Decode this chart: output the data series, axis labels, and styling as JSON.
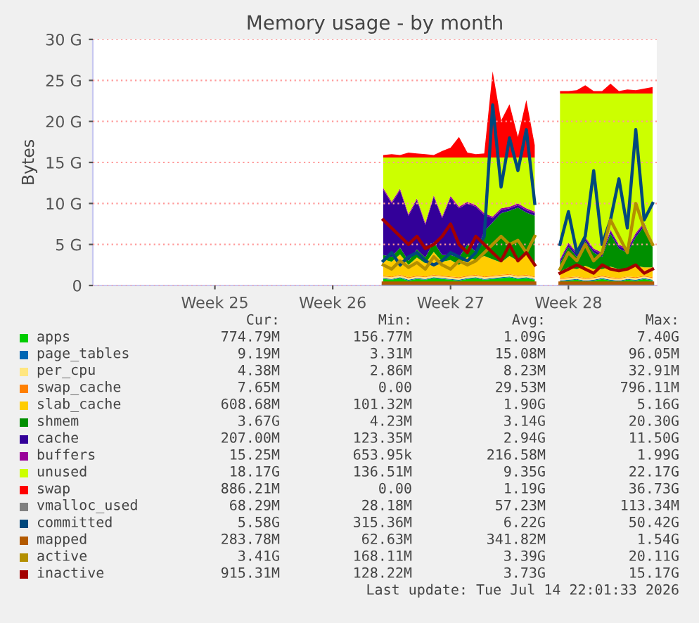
{
  "chart_data": {
    "type": "area",
    "title": "Memory usage - by month",
    "ylabel": "Bytes",
    "stacked": true,
    "legend": "bottom",
    "grid": "y",
    "categories": [
      null,
      null,
      null,
      null,
      null,
      null,
      null,
      null,
      null,
      null,
      null,
      null,
      null,
      null,
      "Week 25",
      null,
      null,
      null,
      null,
      null,
      null,
      null,
      null,
      null,
      null,
      null,
      null,
      null,
      "Week 26",
      null,
      null,
      null,
      null,
      null,
      null,
      null,
      null,
      null,
      null,
      null,
      null,
      null,
      "Week 27",
      null,
      null,
      null,
      null,
      null,
      null,
      null,
      null,
      null,
      null,
      null,
      null,
      null,
      "Week 28",
      null,
      null,
      null,
      null,
      null,
      null,
      null,
      null,
      null,
      null
    ],
    "ylim": [
      0,
      30
    ],
    "yticks": [
      0,
      {
        "value": 5,
        "label": "5 G"
      },
      {
        "value": 10,
        "label": "10 G"
      },
      {
        "value": 15,
        "label": "15 G"
      },
      {
        "value": 20,
        "label": "20 G"
      },
      {
        "value": 25,
        "label": "25 G"
      },
      {
        "value": 30,
        "label": "30 G"
      }
    ],
    "series": [
      {
        "name": "apps",
        "color": "#00cc00",
        "values": [
          null,
          null,
          null,
          null,
          null,
          null,
          null,
          null,
          null,
          null,
          null,
          null,
          null,
          null,
          null,
          null,
          null,
          null,
          null,
          null,
          null,
          null,
          null,
          null,
          null,
          null,
          null,
          null,
          null,
          null,
          null,
          null,
          null,
          null,
          0.8,
          0.7,
          0.9,
          0.6,
          0.8,
          0.7,
          0.9,
          0.8,
          0.7,
          0.6,
          0.8,
          0.9,
          0.7,
          0.8,
          0.9,
          1.0,
          0.8,
          0.9,
          0.7,
          null,
          null,
          0.5,
          0.6,
          0.7,
          0.5,
          0.6,
          0.8,
          0.6,
          0.5,
          0.7,
          0.6,
          0.8,
          0.6
        ]
      },
      {
        "name": "page_tables",
        "color": "#0066b3",
        "values": [
          null,
          null,
          null,
          null,
          null,
          null,
          null,
          null,
          null,
          null,
          null,
          null,
          null,
          null,
          null,
          null,
          null,
          null,
          null,
          null,
          null,
          null,
          null,
          null,
          null,
          null,
          null,
          null,
          null,
          null,
          null,
          null,
          null,
          null,
          0.1,
          0.1,
          0.1,
          0.1,
          0.1,
          0.1,
          0.1,
          0.1,
          0.1,
          0.1,
          0.1,
          0.1,
          0.1,
          0.1,
          0.1,
          0.1,
          0.1,
          0.1,
          0.1,
          null,
          null,
          0.1,
          0.1,
          0.1,
          0.1,
          0.1,
          0.1,
          0.1,
          0.1,
          0.1,
          0.1,
          0.1,
          0.1
        ]
      },
      {
        "name": "per_cpu",
        "color": "#ffe680",
        "values": [
          null,
          null,
          null,
          null,
          null,
          null,
          null,
          null,
          null,
          null,
          null,
          null,
          null,
          null,
          null,
          null,
          null,
          null,
          null,
          null,
          null,
          null,
          null,
          null,
          null,
          null,
          null,
          null,
          null,
          null,
          null,
          null,
          null,
          null,
          0.2,
          0.2,
          0.2,
          0.2,
          0.2,
          0.2,
          0.2,
          0.2,
          0.2,
          0.2,
          0.2,
          0.2,
          0.2,
          0.2,
          0.2,
          0.2,
          0.2,
          0.2,
          0.2,
          null,
          null,
          0.2,
          0.2,
          0.2,
          0.2,
          0.2,
          0.2,
          0.2,
          0.2,
          0.2,
          0.2,
          0.2,
          0.2
        ]
      },
      {
        "name": "swap_cache",
        "color": "#ff8000",
        "values": [
          null,
          null,
          null,
          null,
          null,
          null,
          null,
          null,
          null,
          null,
          null,
          null,
          null,
          null,
          null,
          null,
          null,
          null,
          null,
          null,
          null,
          null,
          null,
          null,
          null,
          null,
          null,
          null,
          null,
          null,
          null,
          null,
          null,
          null,
          0.1,
          0.1,
          0.1,
          0.1,
          0.1,
          0.1,
          0.1,
          0.1,
          0.1,
          0.1,
          0.1,
          0.1,
          0.1,
          0.1,
          0.1,
          0.1,
          0.1,
          0.1,
          0.1,
          null,
          null,
          0.1,
          0.1,
          0.1,
          0.1,
          0.1,
          0.1,
          0.1,
          0.1,
          0.1,
          0.1,
          0.1,
          0.1
        ]
      },
      {
        "name": "slab_cache",
        "color": "#ffcc00",
        "values": [
          null,
          null,
          null,
          null,
          null,
          null,
          null,
          null,
          null,
          null,
          null,
          null,
          null,
          null,
          null,
          null,
          null,
          null,
          null,
          null,
          null,
          null,
          null,
          null,
          null,
          null,
          null,
          null,
          null,
          null,
          null,
          null,
          null,
          null,
          2.0,
          1.8,
          2.5,
          1.5,
          2.2,
          1.6,
          2.8,
          1.7,
          2.0,
          1.5,
          2.3,
          1.8,
          2.5,
          2.0,
          1.5,
          2.2,
          1.8,
          2.6,
          1.4,
          null,
          null,
          0.8,
          1.2,
          0.9,
          1.5,
          1.0,
          0.8,
          1.3,
          1.1,
          0.9,
          1.4,
          1.0,
          1.2
        ]
      },
      {
        "name": "shmem",
        "color": "#008f00",
        "values": [
          null,
          null,
          null,
          null,
          null,
          null,
          null,
          null,
          null,
          null,
          null,
          null,
          null,
          null,
          null,
          null,
          null,
          null,
          null,
          null,
          null,
          null,
          null,
          null,
          null,
          null,
          null,
          null,
          null,
          null,
          null,
          null,
          null,
          null,
          0.5,
          0.6,
          0.8,
          0.5,
          1.0,
          0.7,
          1.2,
          0.8,
          0.6,
          0.9,
          1.5,
          1.0,
          3.0,
          4.5,
          6.0,
          5.5,
          6.5,
          5.0,
          6.0,
          null,
          null,
          1.0,
          2.5,
          1.5,
          3.0,
          2.0,
          1.5,
          4.0,
          2.5,
          2.0,
          3.5,
          5.0,
          2.5
        ]
      },
      {
        "name": "cache",
        "color": "#330099",
        "values": [
          null,
          null,
          null,
          null,
          null,
          null,
          null,
          null,
          null,
          null,
          null,
          null,
          null,
          null,
          null,
          null,
          null,
          null,
          null,
          null,
          null,
          null,
          null,
          null,
          null,
          null,
          null,
          null,
          null,
          null,
          null,
          null,
          null,
          null,
          8.0,
          6.5,
          7.0,
          5.5,
          6.0,
          4.0,
          5.5,
          4.5,
          7.0,
          6.0,
          5.0,
          5.5,
          2.0,
          0.5,
          0.4,
          0.3,
          0.3,
          0.3,
          0.3,
          null,
          null,
          0.3,
          0.3,
          0.3,
          0.3,
          0.3,
          0.3,
          0.3,
          0.3,
          0.3,
          0.3,
          0.3,
          0.3
        ]
      },
      {
        "name": "buffers",
        "color": "#990099",
        "values": [
          null,
          null,
          null,
          null,
          null,
          null,
          null,
          null,
          null,
          null,
          null,
          null,
          null,
          null,
          null,
          null,
          null,
          null,
          null,
          null,
          null,
          null,
          null,
          null,
          null,
          null,
          null,
          null,
          null,
          null,
          null,
          null,
          null,
          null,
          0.2,
          0.2,
          0.2,
          0.2,
          0.2,
          0.2,
          0.2,
          0.2,
          0.2,
          0.2,
          0.2,
          0.2,
          0.2,
          0.2,
          0.2,
          0.2,
          0.2,
          0.2,
          0.2,
          null,
          null,
          0.2,
          0.2,
          0.2,
          0.2,
          0.2,
          0.2,
          0.2,
          0.2,
          0.2,
          0.2,
          0.2,
          0.2
        ]
      },
      {
        "name": "unused",
        "color": "#ccff00",
        "values": [
          null,
          null,
          null,
          null,
          null,
          null,
          null,
          null,
          null,
          null,
          null,
          null,
          null,
          null,
          null,
          null,
          null,
          null,
          null,
          null,
          null,
          null,
          null,
          null,
          null,
          null,
          null,
          null,
          null,
          null,
          null,
          null,
          null,
          null,
          3.7,
          5.4,
          3.8,
          6.9,
          5.0,
          8.0,
          4.6,
          7.2,
          4.7,
          6.0,
          5.4,
          5.8,
          6.8,
          7.2,
          6.2,
          6.0,
          5.6,
          6.2,
          6.6,
          null,
          null,
          20.2,
          18.2,
          19.4,
          17.5,
          18.9,
          19.4,
          16.6,
          18.4,
          18.9,
          17.0,
          15.7,
          18.2
        ]
      },
      {
        "name": "swap",
        "color": "#ff0000",
        "values": [
          null,
          null,
          null,
          null,
          null,
          null,
          null,
          null,
          null,
          null,
          null,
          null,
          null,
          null,
          null,
          null,
          null,
          null,
          null,
          null,
          null,
          null,
          null,
          null,
          null,
          null,
          null,
          null,
          null,
          null,
          null,
          null,
          null,
          null,
          0.3,
          0.4,
          0.3,
          0.6,
          0.5,
          0.4,
          0.3,
          0.8,
          1.2,
          2.5,
          0.6,
          0.4,
          0.5,
          10.5,
          4.5,
          6.5,
          2.5,
          7.0,
          1.5,
          null,
          null,
          0.3,
          0.3,
          0.4,
          1.0,
          0.3,
          0.3,
          1.2,
          0.3,
          0.5,
          0.4,
          0.6,
          0.8
        ]
      },
      {
        "name": "vmalloc_used",
        "type": "line",
        "color": "#808080",
        "values": [
          null,
          null,
          null,
          null,
          null,
          null,
          null,
          null,
          null,
          null,
          null,
          null,
          null,
          null,
          null,
          null,
          null,
          null,
          null,
          null,
          null,
          null,
          null,
          null,
          null,
          null,
          null,
          null,
          null,
          null,
          null,
          null,
          null,
          null,
          0,
          0,
          0,
          0,
          0,
          0,
          0,
          0,
          0,
          0,
          0,
          0,
          0,
          0,
          0,
          0,
          0,
          0,
          0,
          null,
          null,
          0,
          0,
          0,
          0,
          0,
          0,
          0,
          0,
          0,
          0,
          0,
          0
        ]
      },
      {
        "name": "committed",
        "type": "line",
        "color": "#00487d",
        "values": [
          null,
          null,
          null,
          null,
          null,
          null,
          null,
          null,
          null,
          null,
          null,
          null,
          null,
          null,
          null,
          null,
          null,
          null,
          null,
          null,
          null,
          null,
          null,
          null,
          null,
          null,
          null,
          null,
          null,
          null,
          null,
          null,
          null,
          null,
          3,
          4,
          2.5,
          3.5,
          4,
          3,
          2.5,
          3,
          4,
          3.5,
          3,
          4,
          6,
          22,
          12,
          18,
          14,
          19,
          10,
          null,
          null,
          5,
          9,
          4,
          6,
          14,
          5,
          8,
          13,
          7,
          19,
          8,
          10
        ]
      },
      {
        "name": "mapped",
        "type": "line",
        "color": "#b35a00",
        "values": [
          null,
          null,
          null,
          null,
          null,
          null,
          null,
          null,
          null,
          null,
          null,
          null,
          null,
          null,
          null,
          null,
          null,
          null,
          null,
          null,
          null,
          null,
          null,
          null,
          null,
          null,
          null,
          null,
          null,
          null,
          null,
          null,
          null,
          null,
          0.3,
          0.3,
          0.3,
          0.3,
          0.3,
          0.3,
          0.3,
          0.3,
          0.3,
          0.3,
          0.3,
          0.3,
          0.3,
          0.3,
          0.3,
          0.3,
          0.3,
          0.3,
          0.3,
          null,
          null,
          0.3,
          0.3,
          0.3,
          0.3,
          0.3,
          0.3,
          0.3,
          0.3,
          0.3,
          0.3,
          0.3,
          0.3
        ]
      },
      {
        "name": "active",
        "type": "line",
        "color": "#b38f00",
        "values": [
          null,
          null,
          null,
          null,
          null,
          null,
          null,
          null,
          null,
          null,
          null,
          null,
          null,
          null,
          null,
          null,
          null,
          null,
          null,
          null,
          null,
          null,
          null,
          null,
          null,
          null,
          null,
          null,
          null,
          null,
          null,
          null,
          null,
          null,
          2.5,
          2,
          3,
          2.2,
          2.8,
          2,
          3.5,
          2.5,
          2,
          3,
          2.5,
          3,
          4,
          5,
          6,
          5,
          5.5,
          4,
          6,
          null,
          null,
          2,
          4,
          3,
          5,
          3,
          4,
          8,
          6,
          4,
          10,
          7,
          5
        ]
      },
      {
        "name": "inactive",
        "type": "line",
        "color": "#a30000",
        "values": [
          null,
          null,
          null,
          null,
          null,
          null,
          null,
          null,
          null,
          null,
          null,
          null,
          null,
          null,
          null,
          null,
          null,
          null,
          null,
          null,
          null,
          null,
          null,
          null,
          null,
          null,
          null,
          null,
          null,
          null,
          null,
          null,
          null,
          null,
          8,
          7,
          6,
          5,
          6,
          4.5,
          5,
          6,
          7.5,
          5,
          4,
          6,
          5,
          4,
          3,
          5,
          3,
          4,
          2.5,
          null,
          null,
          1.5,
          2,
          2.5,
          2,
          1.5,
          2.5,
          2,
          1.8,
          2,
          2.5,
          1.5,
          2
        ]
      }
    ],
    "annotations": [
      "Cur:",
      "Min:",
      "Avg:",
      "Max:",
      "774.79M",
      "156.77M",
      "1.09G",
      "7.40G",
      "9.19M",
      "3.31M",
      "15.08M",
      "96.05M",
      "4.38M",
      "2.86M",
      "8.23M",
      "32.91M",
      "7.65M",
      "0.00",
      "29.53M",
      "796.11M",
      "608.68M",
      "101.32M",
      "1.90G",
      "5.16G",
      "3.67G",
      "4.23M",
      "3.14G",
      "20.30G",
      "207.00M",
      "123.35M",
      "2.94G",
      "11.50G",
      "15.25M",
      "653.95k",
      "216.58M",
      "1.99G",
      "18.17G",
      "136.51M",
      "9.35G",
      "22.17G",
      "886.21M",
      "0.00",
      "1.19G",
      "36.73G",
      "68.29M",
      "28.18M",
      "57.23M",
      "113.34M",
      "5.58G",
      "315.36M",
      "6.22G",
      "50.42G",
      "283.78M",
      "62.63M",
      "341.82M",
      "1.54G",
      "3.41G",
      "168.11M",
      "3.39G",
      "20.11G",
      "915.31M",
      "128.22M",
      "3.73G",
      "15.17G",
      "Last update: Tue Jul 14 22:01:33 2026"
    ]
  }
}
